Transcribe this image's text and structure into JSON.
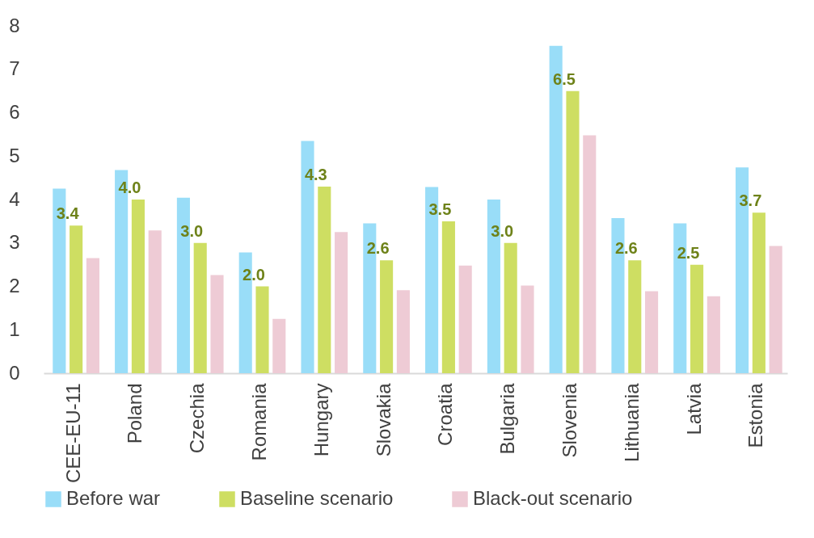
{
  "chart_data": {
    "type": "bar",
    "categories": [
      "CEE-EU-11",
      "Poland",
      "Czechia",
      "Romania",
      "Hungary",
      "Slovakia",
      "Croatia",
      "Bulgaria",
      "Slovenia",
      "Lithuania",
      "Latvia",
      "Estonia"
    ],
    "series": [
      {
        "name": "Before war",
        "color": "#99ddf8",
        "values": [
          4.25,
          4.68,
          4.04,
          2.78,
          5.35,
          3.45,
          4.29,
          4.0,
          7.54,
          3.57,
          3.45,
          4.74
        ]
      },
      {
        "name": "Baseline scenario",
        "color": "#cede62",
        "values": [
          3.4,
          4.0,
          3.0,
          2.0,
          4.3,
          2.6,
          3.5,
          3.0,
          6.5,
          2.6,
          2.5,
          3.7
        ],
        "value_labels": [
          "3.4",
          "4.0",
          "3.0",
          "2.0",
          "4.3",
          "2.6",
          "3.5",
          "3.0",
          "6.5",
          "2.6",
          "2.5",
          "3.7"
        ]
      },
      {
        "name": "Black-out scenario",
        "color": "#eecbd5",
        "values": [
          2.65,
          3.29,
          2.26,
          1.25,
          3.25,
          1.91,
          2.48,
          2.02,
          5.48,
          1.89,
          1.77,
          2.93
        ]
      }
    ],
    "ylim": [
      0,
      8
    ],
    "yticks": [
      0,
      1,
      2,
      3,
      4,
      5,
      6,
      7,
      8
    ],
    "grid": false,
    "legend": "bottom"
  }
}
